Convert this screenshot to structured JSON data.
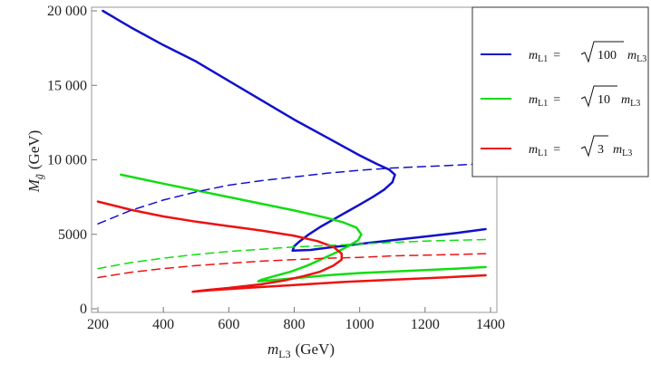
{
  "chart_data": {
    "type": "line",
    "title": "",
    "xlabel": {
      "symbol": "m",
      "subscript": "L3",
      "unit": "(GeV)"
    },
    "ylabel": {
      "symbol": "M",
      "subscript": "g̃",
      "unit": "(GeV)"
    },
    "xlim": [
      200,
      1400
    ],
    "ylim": [
      0,
      20000
    ],
    "x_ticks": [
      {
        "value": 200,
        "label": "200"
      },
      {
        "value": 400,
        "label": "400"
      },
      {
        "value": 600,
        "label": "600"
      },
      {
        "value": 800,
        "label": "800"
      },
      {
        "value": 1000,
        "label": "1000"
      },
      {
        "value": 1200,
        "label": "1200"
      },
      {
        "value": 1400,
        "label": "1400"
      }
    ],
    "y_ticks": [
      {
        "value": 0,
        "label": "0"
      },
      {
        "value": 5000,
        "label": "5000"
      },
      {
        "value": 10000,
        "label": "10 000"
      },
      {
        "value": 15000,
        "label": "15 000"
      },
      {
        "value": 20000,
        "label": "20 000"
      }
    ],
    "grid": false,
    "legend_position": "top-right",
    "legend": [
      {
        "lhs_symbol": "m",
        "lhs_sub": "L1",
        "eq": "=",
        "sqrt_arg": "100",
        "rhs_symbol": "m",
        "rhs_sub": "L3",
        "color": "#1111cc"
      },
      {
        "lhs_symbol": "m",
        "lhs_sub": "L1",
        "eq": "=",
        "sqrt_arg": "10",
        "rhs_symbol": "m",
        "rhs_sub": "L3",
        "color": "#11dd11"
      },
      {
        "lhs_symbol": "m",
        "lhs_sub": "L1",
        "eq": "=",
        "sqrt_arg": "3",
        "rhs_symbol": "m",
        "rhs_sub": "L3",
        "color": "#ee1111"
      }
    ],
    "series": [
      {
        "id": "blue-solid",
        "color": "#1111cc",
        "style": "solid",
        "points": [
          [
            215,
            20000
          ],
          [
            300,
            18900
          ],
          [
            400,
            17700
          ],
          [
            500,
            16600
          ],
          [
            600,
            15300
          ],
          [
            700,
            14000
          ],
          [
            800,
            12700
          ],
          [
            900,
            11500
          ],
          [
            1000,
            10300
          ],
          [
            1050,
            9750
          ],
          [
            1090,
            9350
          ],
          [
            1108,
            9000
          ],
          [
            1100,
            8500
          ],
          [
            1075,
            8000
          ],
          [
            1040,
            7500
          ],
          [
            1000,
            7000
          ],
          [
            960,
            6500
          ],
          [
            920,
            6000
          ],
          [
            880,
            5500
          ],
          [
            845,
            5000
          ],
          [
            815,
            4500
          ],
          [
            800,
            4200
          ],
          [
            795,
            3900
          ],
          [
            850,
            3950
          ],
          [
            900,
            4100
          ],
          [
            1000,
            4350
          ],
          [
            1100,
            4600
          ],
          [
            1200,
            4850
          ],
          [
            1300,
            5100
          ],
          [
            1385,
            5350
          ]
        ]
      },
      {
        "id": "green-solid",
        "color": "#11dd11",
        "style": "solid",
        "points": [
          [
            270,
            9000
          ],
          [
            400,
            8400
          ],
          [
            500,
            7950
          ],
          [
            600,
            7500
          ],
          [
            700,
            7050
          ],
          [
            800,
            6600
          ],
          [
            900,
            6100
          ],
          [
            950,
            5800
          ],
          [
            990,
            5450
          ],
          [
            1005,
            5000
          ],
          [
            995,
            4600
          ],
          [
            965,
            4200
          ],
          [
            930,
            3800
          ],
          [
            890,
            3400
          ],
          [
            840,
            2900
          ],
          [
            790,
            2500
          ],
          [
            740,
            2200
          ],
          [
            700,
            1950
          ],
          [
            690,
            1850
          ],
          [
            750,
            1950
          ],
          [
            800,
            2050
          ],
          [
            900,
            2250
          ],
          [
            1000,
            2400
          ],
          [
            1100,
            2500
          ],
          [
            1200,
            2600
          ],
          [
            1300,
            2700
          ],
          [
            1385,
            2800
          ]
        ]
      },
      {
        "id": "red-solid",
        "color": "#ee1111",
        "style": "solid",
        "points": [
          [
            200,
            7200
          ],
          [
            300,
            6650
          ],
          [
            400,
            6200
          ],
          [
            500,
            5850
          ],
          [
            600,
            5550
          ],
          [
            700,
            5250
          ],
          [
            800,
            4900
          ],
          [
            870,
            4550
          ],
          [
            920,
            4150
          ],
          [
            945,
            3700
          ],
          [
            945,
            3300
          ],
          [
            920,
            2900
          ],
          [
            880,
            2500
          ],
          [
            830,
            2200
          ],
          [
            770,
            1900
          ],
          [
            700,
            1650
          ],
          [
            600,
            1400
          ],
          [
            530,
            1250
          ],
          [
            490,
            1150
          ],
          [
            550,
            1250
          ],
          [
            650,
            1400
          ],
          [
            800,
            1600
          ],
          [
            950,
            1800
          ],
          [
            1100,
            1950
          ],
          [
            1250,
            2100
          ],
          [
            1385,
            2250
          ]
        ]
      },
      {
        "id": "blue-dashed",
        "color": "#1111cc",
        "style": "dashed",
        "points": [
          [
            200,
            5700
          ],
          [
            300,
            6600
          ],
          [
            400,
            7300
          ],
          [
            500,
            7850
          ],
          [
            600,
            8300
          ],
          [
            700,
            8600
          ],
          [
            800,
            8850
          ],
          [
            900,
            9100
          ],
          [
            1000,
            9300
          ],
          [
            1100,
            9450
          ],
          [
            1200,
            9550
          ],
          [
            1300,
            9650
          ],
          [
            1385,
            9750
          ]
        ]
      },
      {
        "id": "green-dashed",
        "color": "#11dd11",
        "style": "dashed",
        "points": [
          [
            200,
            2700
          ],
          [
            300,
            3100
          ],
          [
            400,
            3400
          ],
          [
            500,
            3650
          ],
          [
            600,
            3850
          ],
          [
            700,
            4000
          ],
          [
            800,
            4150
          ],
          [
            900,
            4250
          ],
          [
            1000,
            4350
          ],
          [
            1100,
            4450
          ],
          [
            1200,
            4550
          ],
          [
            1300,
            4600
          ],
          [
            1385,
            4650
          ]
        ]
      },
      {
        "id": "red-dashed",
        "color": "#ee1111",
        "style": "dashed",
        "points": [
          [
            200,
            2100
          ],
          [
            300,
            2450
          ],
          [
            400,
            2700
          ],
          [
            500,
            2900
          ],
          [
            600,
            3050
          ],
          [
            700,
            3200
          ],
          [
            800,
            3300
          ],
          [
            900,
            3400
          ],
          [
            1000,
            3450
          ],
          [
            1100,
            3550
          ],
          [
            1200,
            3600
          ],
          [
            1300,
            3650
          ],
          [
            1385,
            3700
          ]
        ]
      }
    ]
  }
}
